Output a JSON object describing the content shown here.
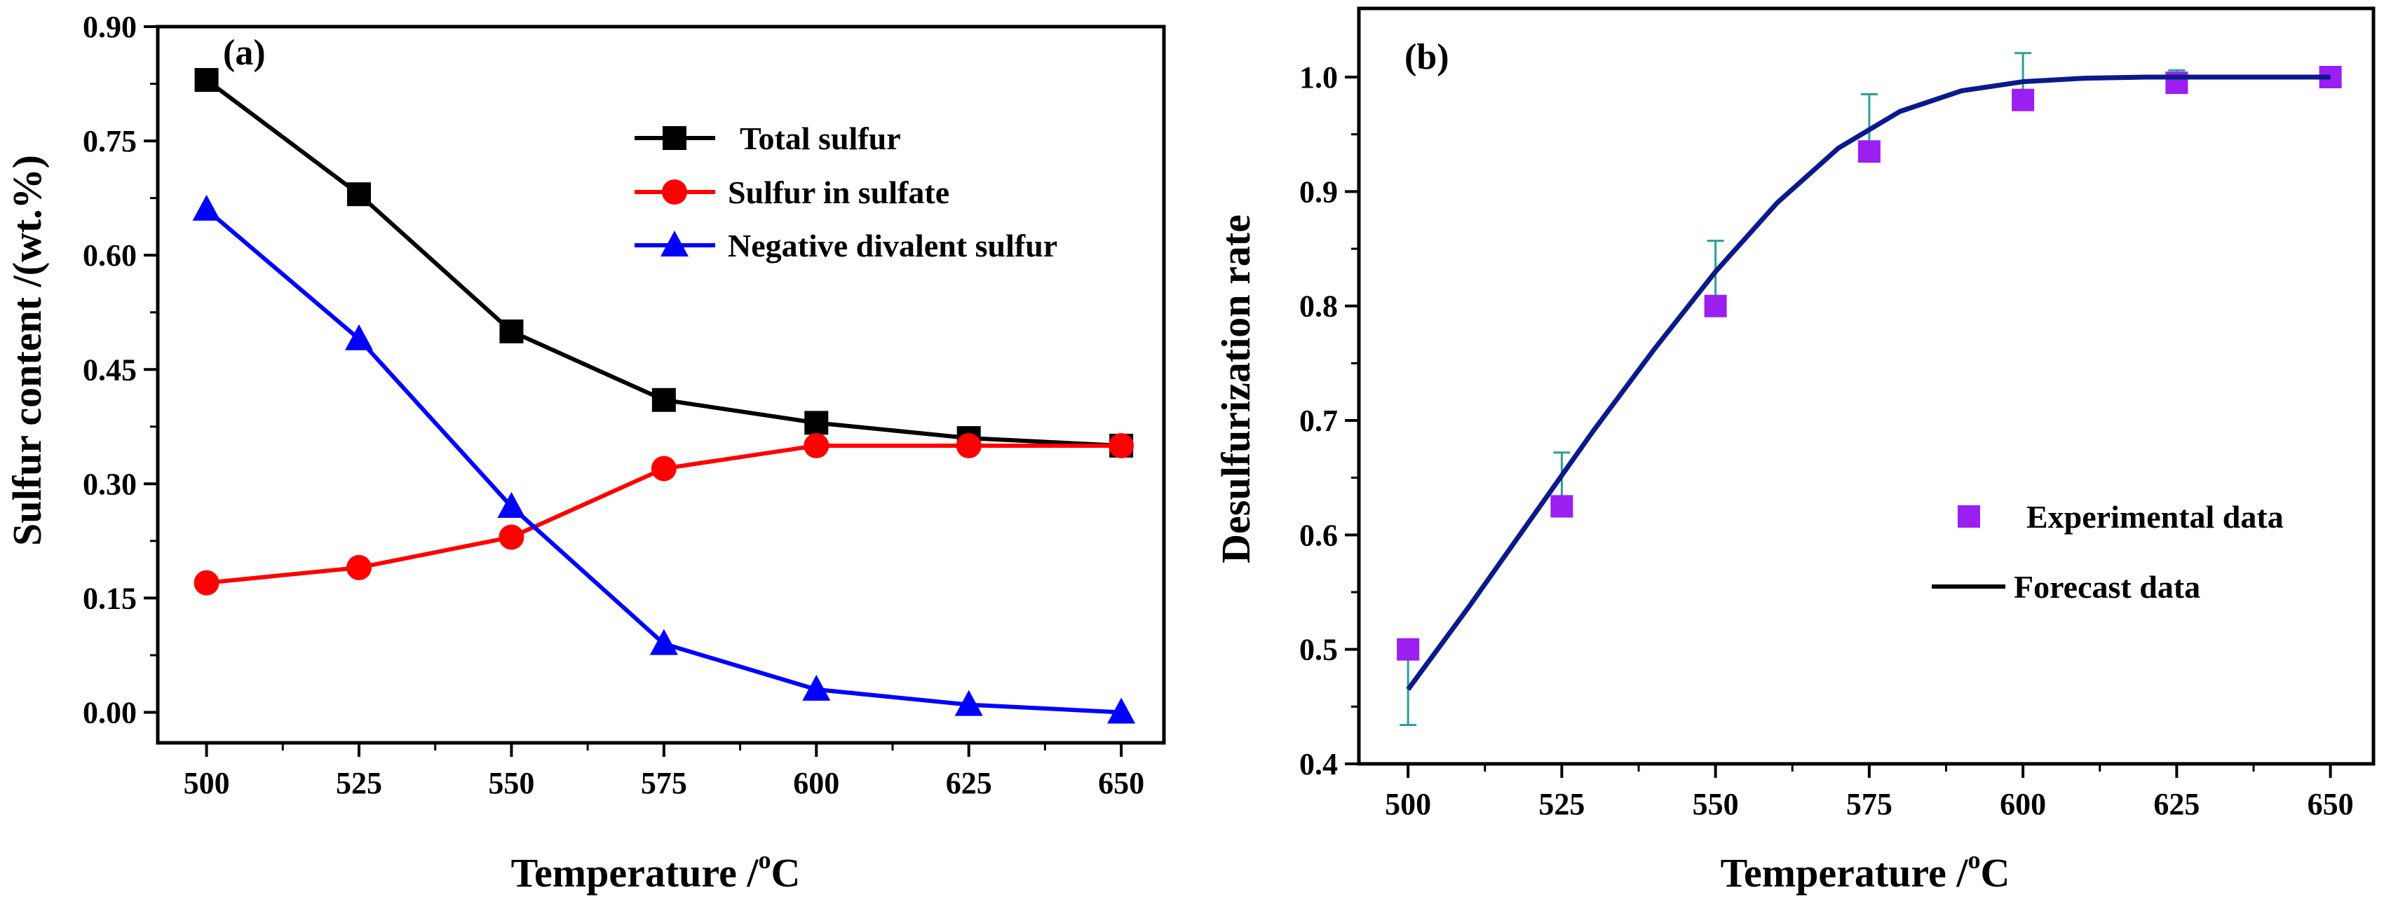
{
  "chart_data": [
    {
      "panel_label": "(a)",
      "type": "line",
      "xlabel": "Temperature /",
      "xlabel_sup": "o",
      "xlabel_unit": "C",
      "ylabel": "Sulfur content /(wt.%)",
      "xlim": [
        492,
        657
      ],
      "ylim": [
        -0.04,
        0.9
      ],
      "xticks": [
        500,
        525,
        550,
        575,
        600,
        625,
        650
      ],
      "yticks": [
        0.0,
        0.15,
        0.3,
        0.45,
        0.6,
        0.75,
        0.9
      ],
      "ytick_labels": [
        "0.00",
        "0.15",
        "0.30",
        "0.45",
        "0.60",
        "0.75",
        "0.90"
      ],
      "x": [
        500,
        525,
        550,
        575,
        600,
        625,
        650
      ],
      "legend_position": "upper-right",
      "series": [
        {
          "name": "Total sulfur",
          "color": "#000000",
          "marker": "square",
          "values": [
            0.83,
            0.68,
            0.5,
            0.41,
            0.38,
            0.36,
            0.35
          ]
        },
        {
          "name": "Sulfur in sulfate",
          "color": "#ff0000",
          "marker": "circle",
          "values": [
            0.17,
            0.19,
            0.23,
            0.32,
            0.35,
            0.35,
            0.35
          ]
        },
        {
          "name": "Negative divalent sulfur",
          "color": "#0000ff",
          "marker": "triangle",
          "values": [
            0.66,
            0.49,
            0.27,
            0.09,
            0.03,
            0.01,
            0.0
          ]
        }
      ]
    },
    {
      "panel_label": "(b)",
      "type": "scatter",
      "xlabel": "Temperature /",
      "xlabel_sup": "o",
      "xlabel_unit": "C",
      "ylabel": "Desulfurization rate",
      "xlim": [
        492,
        657
      ],
      "ylim": [
        0.4,
        1.06
      ],
      "xticks": [
        500,
        525,
        550,
        575,
        600,
        625,
        650
      ],
      "yticks": [
        0.4,
        0.5,
        0.6,
        0.7,
        0.8,
        0.9,
        1.0
      ],
      "ytick_labels": [
        "0.4",
        "0.5",
        "0.6",
        "0.7",
        "0.8",
        "0.9",
        "1.0"
      ],
      "legend_position": "lower-right",
      "experimental": {
        "name": "Experimental data",
        "color": "#9a1ff0",
        "x": [
          500,
          525,
          550,
          575,
          600,
          625,
          650
        ],
        "y": [
          0.5,
          0.625,
          0.8,
          0.935,
          0.98,
          0.995,
          1.0
        ],
        "error_low": [
          0.434,
          null,
          null,
          null,
          null,
          null,
          null
        ],
        "error_high": [
          null,
          0.672,
          0.857,
          0.985,
          1.021,
          1.006,
          null
        ],
        "error_color": "#2aa198"
      },
      "forecast": {
        "name": "Forecast data",
        "color": "#0a1a8c",
        "x": [
          500,
          510,
          520,
          530,
          540,
          550,
          560,
          570,
          580,
          590,
          600,
          610,
          620,
          630,
          640,
          650
        ],
        "y": [
          0.465,
          0.538,
          0.614,
          0.69,
          0.762,
          0.83,
          0.89,
          0.938,
          0.97,
          0.988,
          0.996,
          0.999,
          1.0,
          1.0,
          1.0,
          1.0
        ]
      }
    }
  ]
}
